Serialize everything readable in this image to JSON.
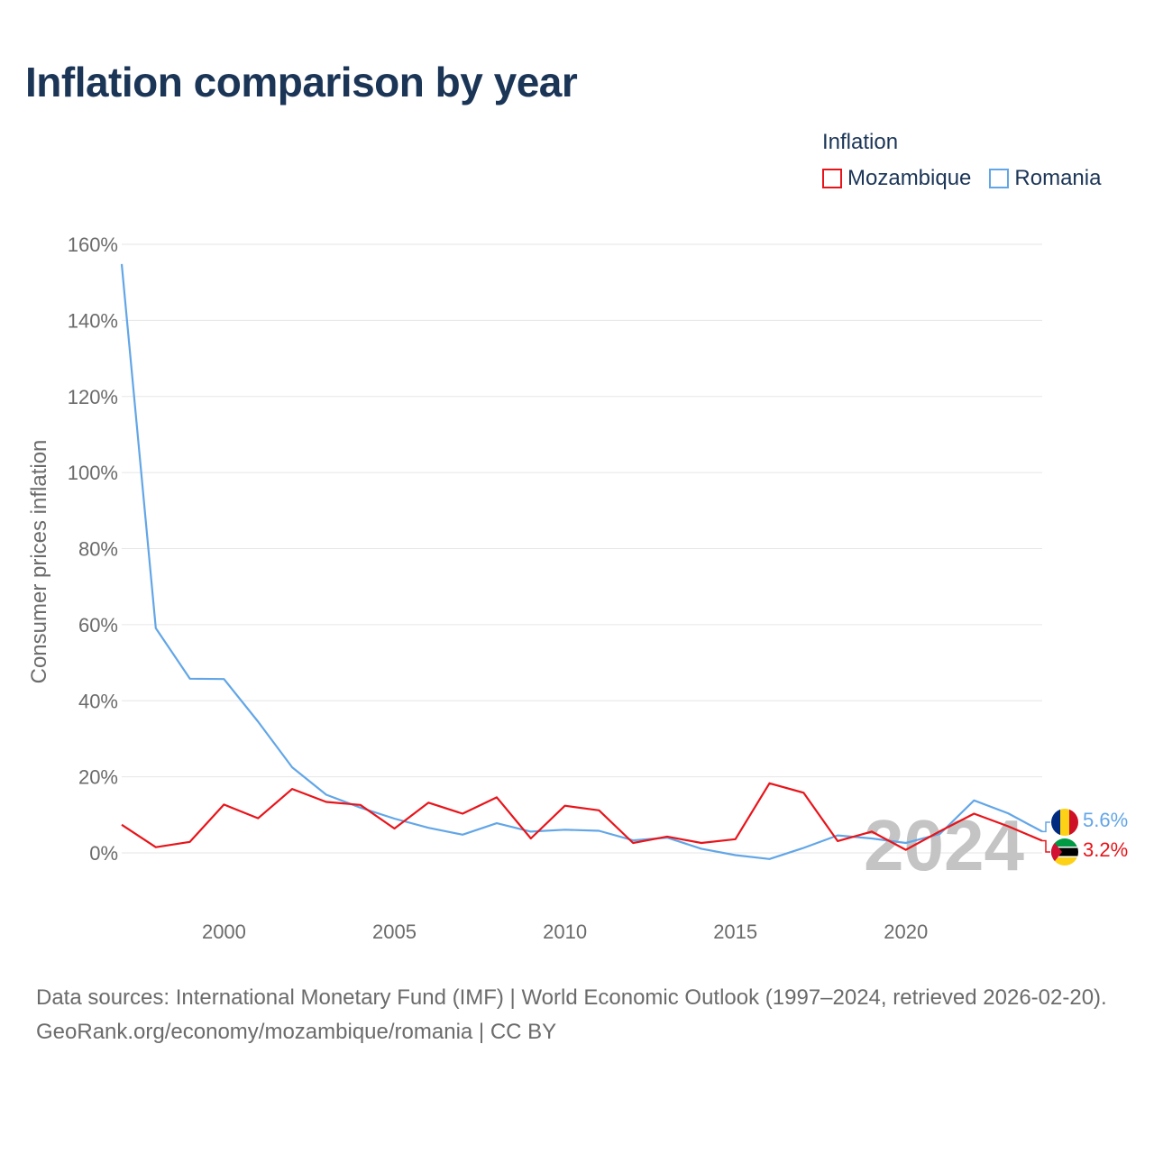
{
  "title": "Inflation comparison by year",
  "legend": {
    "title": "Inflation",
    "items": [
      {
        "name": "Mozambique",
        "color": "#e8141a"
      },
      {
        "name": "Romania",
        "color": "#62a6e7"
      }
    ]
  },
  "footer": {
    "sources": "Data sources: International Monetary Fund (IMF) | World Economic Outlook (1997–2024, retrieved 2026-02-20).",
    "credit": "GeoRank.org/economy/mozambique/romania | CC BY"
  },
  "year_watermark": "2024",
  "chart_data": {
    "type": "line",
    "title": "Inflation comparison by year",
    "xlabel": "",
    "ylabel": "Consumer prices inflation",
    "xlim": [
      1997,
      2024
    ],
    "ylim": [
      -15,
      160
    ],
    "x_ticks": [
      2000,
      2005,
      2010,
      2015,
      2020
    ],
    "y_ticks": [
      0,
      20,
      40,
      60,
      80,
      100,
      120,
      140,
      160
    ],
    "y_tick_labels": [
      "0%",
      "20%",
      "40%",
      "60%",
      "80%",
      "100%",
      "120%",
      "140%",
      "160%"
    ],
    "grid": true,
    "legend_position": "top-right",
    "x": [
      1997,
      1998,
      1999,
      2000,
      2001,
      2002,
      2003,
      2004,
      2005,
      2006,
      2007,
      2008,
      2009,
      2010,
      2011,
      2012,
      2013,
      2014,
      2015,
      2016,
      2017,
      2018,
      2019,
      2020,
      2021,
      2022,
      2023,
      2024
    ],
    "series": [
      {
        "name": "Mozambique",
        "color": "#e8141a",
        "values": [
          7.4,
          1.5,
          2.9,
          12.7,
          9.1,
          16.8,
          13.4,
          12.6,
          6.4,
          13.2,
          10.3,
          14.6,
          3.8,
          12.4,
          11.2,
          2.6,
          4.3,
          2.6,
          3.6,
          18.3,
          15.8,
          3.1,
          5.6,
          0.8,
          5.7,
          10.3,
          7.0,
          3.2
        ],
        "end_label": "3.2%"
      },
      {
        "name": "Romania",
        "color": "#62a6e7",
        "values": [
          154.8,
          59.1,
          45.8,
          45.7,
          34.5,
          22.5,
          15.3,
          11.9,
          9.0,
          6.6,
          4.8,
          7.8,
          5.6,
          6.1,
          5.8,
          3.3,
          4.0,
          1.1,
          -0.6,
          -1.6,
          1.3,
          4.6,
          3.8,
          2.6,
          5.0,
          13.8,
          10.4,
          5.6
        ],
        "end_label": "5.6%"
      }
    ]
  }
}
